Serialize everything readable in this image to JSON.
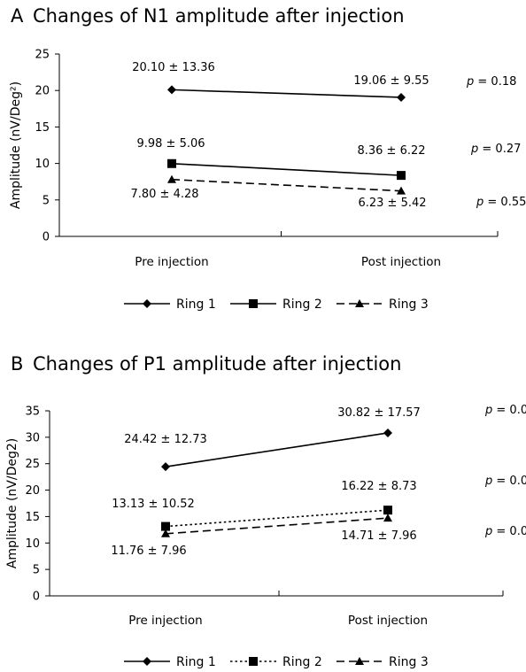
{
  "chart_data": [
    {
      "type": "line",
      "panel_letter": "A",
      "title": "Changes of N1 amplitude after injection",
      "ylabel": "Amplitude (nV/Deg²)",
      "xlabel": "",
      "categories": [
        "Pre injection",
        "Post injection"
      ],
      "ylim": [
        0,
        25
      ],
      "yticks": [
        0,
        5,
        10,
        15,
        20,
        25
      ],
      "grid": false,
      "legend_position": "bottom",
      "series": [
        {
          "name": "Ring 1",
          "values": [
            20.1,
            19.06
          ],
          "marker": "diamond",
          "dash": "solid",
          "labels": [
            "20.10 ± 13.36",
            "19.06 ± 9.55"
          ],
          "p": "p = 0.18"
        },
        {
          "name": "Ring 2",
          "values": [
            9.98,
            8.36
          ],
          "marker": "square",
          "dash": "solid",
          "labels": [
            "9.98 ± 5.06",
            "8.36 ± 6.22"
          ],
          "p": "p = 0.27"
        },
        {
          "name": "Ring 3",
          "values": [
            7.8,
            6.23
          ],
          "marker": "triangle",
          "dash": "dashed",
          "labels": [
            "7.80 ± 4.28",
            "6.23 ± 5.42"
          ],
          "p": "p = 0.55"
        }
      ]
    },
    {
      "type": "line",
      "panel_letter": "B",
      "title": "Changes of P1 amplitude after injection",
      "ylabel": "Amplitude (nV/Deg2)",
      "xlabel": "",
      "categories": [
        "Pre injection",
        "Post injection"
      ],
      "ylim": [
        0,
        35
      ],
      "yticks": [
        0,
        5,
        10,
        15,
        20,
        25,
        30,
        35
      ],
      "grid": false,
      "legend_position": "bottom",
      "series": [
        {
          "name": "Ring 1",
          "values": [
            24.42,
            30.82
          ],
          "marker": "diamond",
          "dash": "solid",
          "labels": [
            "24.42 ± 12.73",
            "30.82 ± 17.57"
          ],
          "p": "p = 0.0"
        },
        {
          "name": "Ring 2",
          "values": [
            13.13,
            16.22
          ],
          "marker": "square",
          "dash": "dotted",
          "labels": [
            "13.13 ± 10.52",
            "16.22 ± 8.73"
          ],
          "p": "p = 0.0"
        },
        {
          "name": "Ring 3",
          "values": [
            11.76,
            14.71
          ],
          "marker": "triangle",
          "dash": "dashed",
          "labels": [
            "11.76 ± 7.96",
            "14.71 ± 7.96"
          ],
          "p": "p = 0.0"
        }
      ]
    }
  ]
}
